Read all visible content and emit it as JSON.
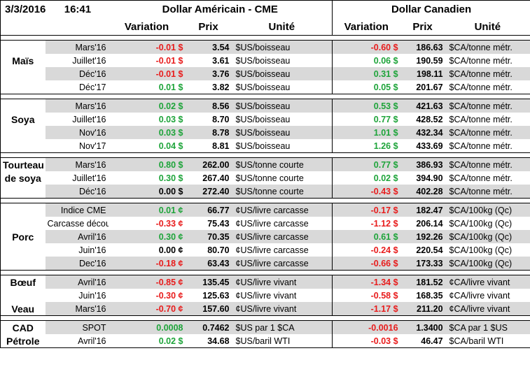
{
  "header": {
    "date": "3/3/2016",
    "time": "16:41",
    "usd_group": "Dollar Américain - CME",
    "cad_group": "Dollar Canadien",
    "col_variation": "Variation",
    "col_prix": "Prix",
    "col_unite": "Unité"
  },
  "sections": [
    {
      "name": "mais",
      "rows": [
        {
          "cat": "",
          "month": "Mars'16",
          "usd_var": "-0.01 $",
          "usd_var_color": "neg",
          "usd_price": "3.54",
          "usd_unit": "$US/boisseau",
          "cad_var": "-0.60 $",
          "cad_var_color": "neg",
          "cad_price": "186.63",
          "cad_unit": "$CA/tonne métr.",
          "gray": true
        },
        {
          "cat": "Maïs",
          "month": "Juillet'16",
          "usd_var": "-0.01 $",
          "usd_var_color": "neg",
          "usd_price": "3.61",
          "usd_unit": "$US/boisseau",
          "cad_var": "0.06 $",
          "cad_var_color": "pos",
          "cad_price": "190.59",
          "cad_unit": "$CA/tonne métr.",
          "gray": false
        },
        {
          "cat": "",
          "month": "Déc'16",
          "usd_var": "-0.01 $",
          "usd_var_color": "neg",
          "usd_price": "3.76",
          "usd_unit": "$US/boisseau",
          "cad_var": "0.31 $",
          "cad_var_color": "pos",
          "cad_price": "198.11",
          "cad_unit": "$CA/tonne métr.",
          "gray": true
        },
        {
          "cat": "",
          "month": "Déc'17",
          "usd_var": "0.01 $",
          "usd_var_color": "pos",
          "usd_price": "3.82",
          "usd_unit": "$US/boisseau",
          "cad_var": "0.05 $",
          "cad_var_color": "pos",
          "cad_price": "201.67",
          "cad_unit": "$CA/tonne métr.",
          "gray": false
        }
      ]
    },
    {
      "name": "soya",
      "rows": [
        {
          "cat": "",
          "month": "Mars'16",
          "usd_var": "0.02 $",
          "usd_var_color": "pos",
          "usd_price": "8.56",
          "usd_unit": "$US/boisseau",
          "cad_var": "0.53 $",
          "cad_var_color": "pos",
          "cad_price": "421.63",
          "cad_unit": "$CA/tonne métr.",
          "gray": true
        },
        {
          "cat": "Soya",
          "month": "Juillet'16",
          "usd_var": "0.03 $",
          "usd_var_color": "pos",
          "usd_price": "8.70",
          "usd_unit": "$US/boisseau",
          "cad_var": "0.77 $",
          "cad_var_color": "pos",
          "cad_price": "428.52",
          "cad_unit": "$CA/tonne métr.",
          "gray": false
        },
        {
          "cat": "",
          "month": "Nov'16",
          "usd_var": "0.03 $",
          "usd_var_color": "pos",
          "usd_price": "8.78",
          "usd_unit": "$US/boisseau",
          "cad_var": "1.01 $",
          "cad_var_color": "pos",
          "cad_price": "432.34",
          "cad_unit": "$CA/tonne métr.",
          "gray": true
        },
        {
          "cat": "",
          "month": "Nov'17",
          "usd_var": "0.04 $",
          "usd_var_color": "pos",
          "usd_price": "8.81",
          "usd_unit": "$US/boisseau",
          "cad_var": "1.26 $",
          "cad_var_color": "pos",
          "cad_price": "433.69",
          "cad_unit": "$CA/tonne métr.",
          "gray": false
        }
      ]
    },
    {
      "name": "tourteau",
      "rows": [
        {
          "cat": "Tourteau",
          "month": "Mars'16",
          "usd_var": "0.80 $",
          "usd_var_color": "pos",
          "usd_price": "262.00",
          "usd_unit": "$US/tonne courte",
          "cad_var": "0.77 $",
          "cad_var_color": "pos",
          "cad_price": "386.93",
          "cad_unit": "$CA/tonne métr.",
          "gray": true
        },
        {
          "cat": "de soya",
          "month": "Juillet'16",
          "usd_var": "0.30 $",
          "usd_var_color": "pos",
          "usd_price": "267.40",
          "usd_unit": "$US/tonne courte",
          "cad_var": "0.02 $",
          "cad_var_color": "pos",
          "cad_price": "394.90",
          "cad_unit": "$CA/tonne métr.",
          "gray": false
        },
        {
          "cat": "",
          "month": "Déc'16",
          "usd_var": "0.00 $",
          "usd_var_color": "blk",
          "usd_price": "272.40",
          "usd_unit": "$US/tonne courte",
          "cad_var": "-0.43 $",
          "cad_var_color": "neg",
          "cad_price": "402.28",
          "cad_unit": "$CA/tonne métr.",
          "gray": true
        }
      ]
    },
    {
      "name": "porc",
      "rows": [
        {
          "cat": "",
          "month": "Indice CME",
          "usd_var": "0.01 ¢",
          "usd_var_color": "pos",
          "usd_price": "66.77",
          "usd_unit": "¢US/livre carcasse",
          "cad_var": "-0.17 $",
          "cad_var_color": "neg",
          "cad_price": "182.47",
          "cad_unit": "$CA/100kg (Qc)",
          "gray": true
        },
        {
          "cat": "",
          "month": "Carcasse découpée",
          "usd_var": "-0.33 ¢",
          "usd_var_color": "neg",
          "usd_price": "75.43",
          "usd_unit": "¢US/livre carcasse",
          "cad_var": "-1.12 $",
          "cad_var_color": "neg",
          "cad_price": "206.14",
          "cad_unit": "$CA/100kg (Qc)",
          "gray": false
        },
        {
          "cat": "Porc",
          "month": "Avril'16",
          "usd_var": "0.30 ¢",
          "usd_var_color": "pos",
          "usd_price": "70.35",
          "usd_unit": "¢US/livre carcasse",
          "cad_var": "0.61 $",
          "cad_var_color": "pos",
          "cad_price": "192.26",
          "cad_unit": "$CA/100kg (Qc)",
          "gray": true
        },
        {
          "cat": "",
          "month": "Juin'16",
          "usd_var": "0.00 ¢",
          "usd_var_color": "blk",
          "usd_price": "80.70",
          "usd_unit": "¢US/livre carcasse",
          "cad_var": "-0.24 $",
          "cad_var_color": "neg",
          "cad_price": "220.54",
          "cad_unit": "$CA/100kg (Qc)",
          "gray": false
        },
        {
          "cat": "",
          "month": "Dec'16",
          "usd_var": "-0.18 ¢",
          "usd_var_color": "neg",
          "usd_price": "63.43",
          "usd_unit": "¢US/livre carcasse",
          "cad_var": "-0.66 $",
          "cad_var_color": "neg",
          "cad_price": "173.33",
          "cad_unit": "$CA/100kg (Qc)",
          "gray": true
        }
      ]
    },
    {
      "name": "boeuf-veau",
      "rows": [
        {
          "cat": "Bœuf",
          "month": "Avril'16",
          "usd_var": "-0.85 ¢",
          "usd_var_color": "neg",
          "usd_price": "135.45",
          "usd_unit": "¢US/livre vivant",
          "cad_var": "-1.34 $",
          "cad_var_color": "neg",
          "cad_price": "181.52",
          "cad_unit": "¢CA/livre vivant",
          "gray": true
        },
        {
          "cat": "",
          "month": "Juin'16",
          "usd_var": "-0.30 ¢",
          "usd_var_color": "neg",
          "usd_price": "125.63",
          "usd_unit": "¢US/livre vivant",
          "cad_var": "-0.58 $",
          "cad_var_color": "neg",
          "cad_price": "168.35",
          "cad_unit": "¢CA/livre vivant",
          "gray": false
        },
        {
          "cat": "Veau",
          "month": "Mars'16",
          "usd_var": "-0.70 ¢",
          "usd_var_color": "neg",
          "usd_price": "157.60",
          "usd_unit": "¢US/livre vivant",
          "cad_var": "-1.17 $",
          "cad_var_color": "neg",
          "cad_price": "211.20",
          "cad_unit": "¢CA/livre vivant",
          "gray": true
        }
      ]
    },
    {
      "name": "cad-petrole",
      "rows": [
        {
          "cat": "CAD",
          "month": "SPOT",
          "usd_var": "0.0008",
          "usd_var_color": "pos",
          "usd_price": "0.7462",
          "usd_unit": "$US par 1 $CA",
          "cad_var": "-0.0016",
          "cad_var_color": "neg",
          "cad_price": "1.3400",
          "cad_unit": "$CA par 1 $US",
          "gray": true
        },
        {
          "cat": "Pétrole",
          "month": "Avril'16",
          "usd_var": "0.02 $",
          "usd_var_color": "pos",
          "usd_price": "34.68",
          "usd_unit": "$US/baril WTI",
          "cad_var": "-0.03 $",
          "cad_var_color": "neg",
          "cad_price": "46.47",
          "cad_unit": "$CA/baril WTI",
          "gray": false
        }
      ]
    }
  ]
}
